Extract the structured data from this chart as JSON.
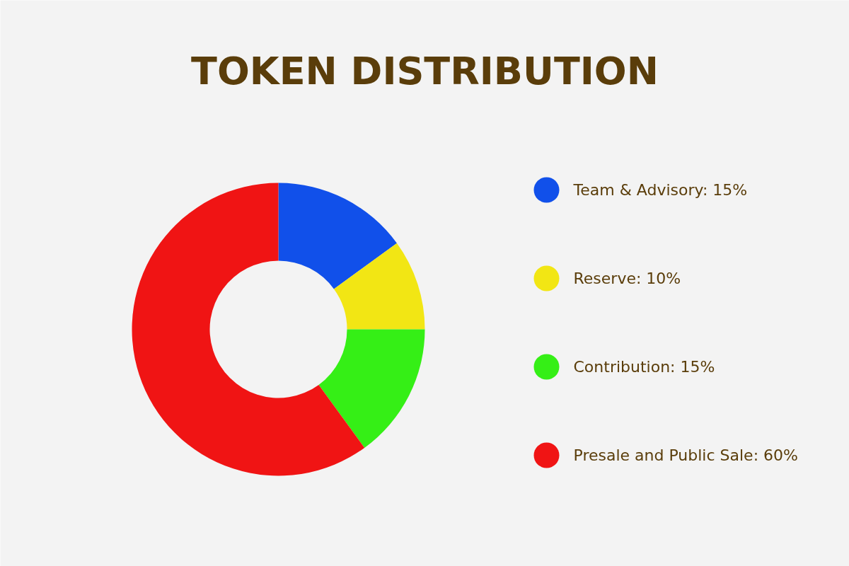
{
  "chart_data": {
    "type": "donut",
    "title": "TOKEN DISTRIBUTION",
    "categories": [
      "Team & Advisory",
      "Reserve",
      "Contribution",
      "Presale and Public Sale"
    ],
    "values": [
      15,
      10,
      15,
      60
    ],
    "value_labels": [
      "15%",
      "10%",
      "15%",
      "60%"
    ],
    "colors": [
      "#1150ea",
      "#f2e614",
      "#35ef16",
      "#f01414"
    ],
    "legend": "right"
  }
}
